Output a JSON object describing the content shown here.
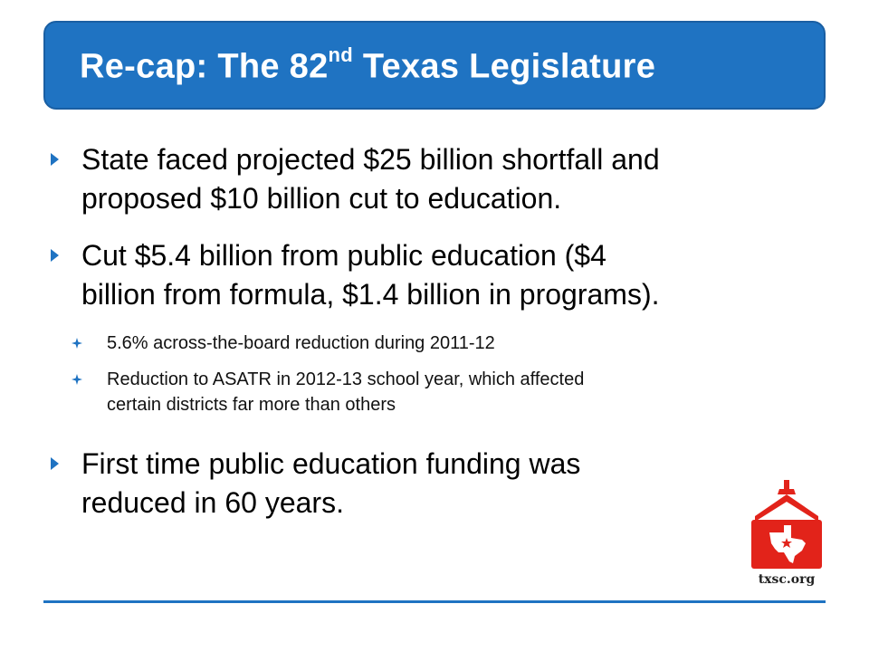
{
  "slide": {
    "title": {
      "prefix": "Re-cap: The 82",
      "superscript": "nd",
      "suffix": " Texas Legislature"
    },
    "bullets": [
      {
        "text_line1": "State faced projected $25 billion shortfall and",
        "text_line2": "proposed $10 billion cut to education."
      },
      {
        "text_line1": "Cut $5.4 billion from public education ($4",
        "text_line2": "billion from formula, $1.4 billion in programs)."
      }
    ],
    "sub_bullets": [
      {
        "text_line1": "5.6% across-the-board reduction during 2011-12"
      },
      {
        "text_line1": "Reduction to ASATR in 2012-13 school year, which affected",
        "text_line2": "certain districts far more than others"
      }
    ],
    "final_bullet": {
      "text_line1": "First time public education funding was",
      "text_line2": "reduced in 60 years."
    },
    "logo": {
      "text": "txsc.org",
      "icon": "schoolhouse-texas-icon",
      "color": "#e2231a"
    },
    "colors": {
      "accent": "#1f73c2",
      "logo_red": "#e2231a"
    }
  }
}
